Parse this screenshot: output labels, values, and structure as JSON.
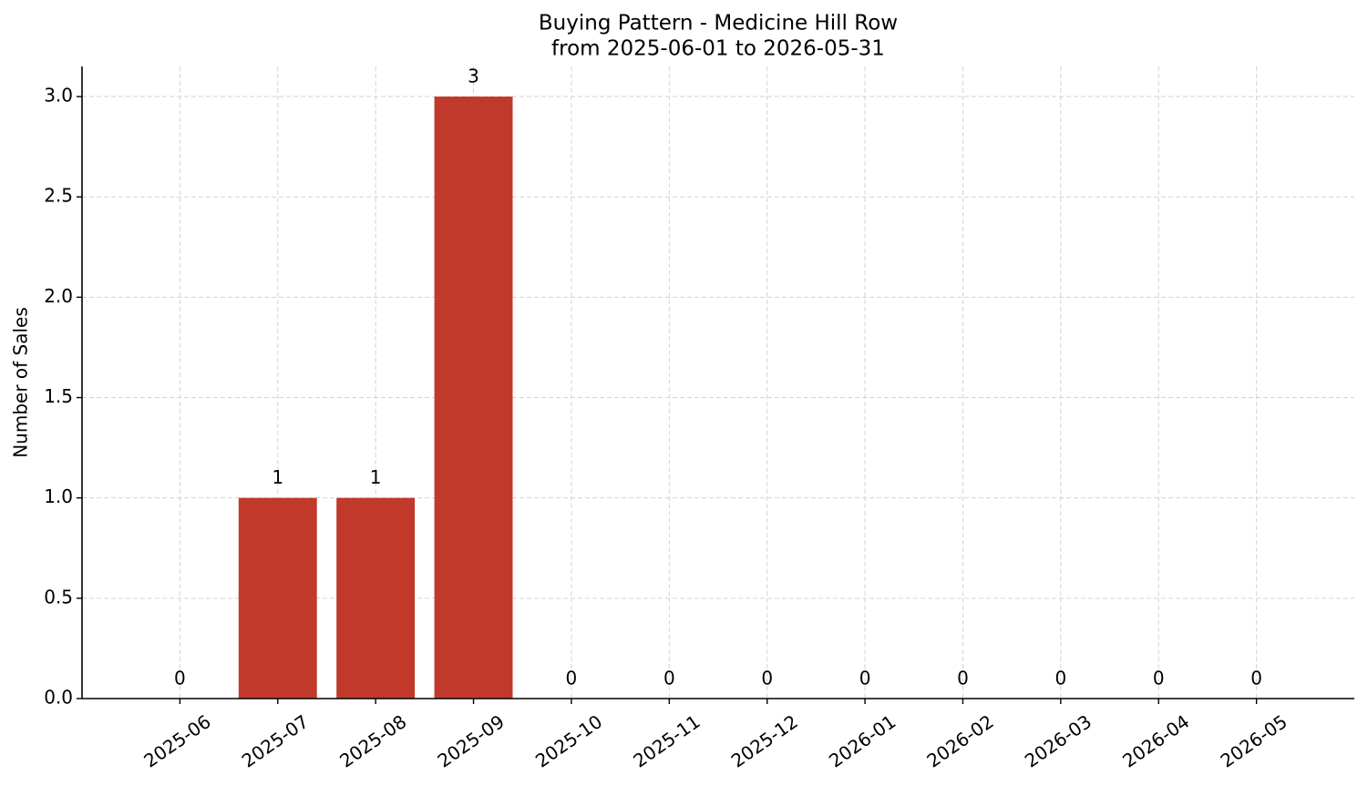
{
  "chart_data": {
    "type": "bar",
    "title": "Buying Pattern - Medicine Hill Row",
    "subtitle": "from 2025-06-01 to 2026-05-31",
    "y_label": "Number of Sales",
    "categories": [
      "2025-06",
      "2025-07",
      "2025-08",
      "2025-09",
      "2025-10",
      "2025-11",
      "2025-12",
      "2026-01",
      "2026-02",
      "2026-03",
      "2026-04",
      "2026-05"
    ],
    "values": [
      0,
      1,
      1,
      3,
      0,
      0,
      0,
      0,
      0,
      0,
      0,
      0
    ],
    "color": "#c0392b",
    "ylim": [
      0,
      3.15
    ],
    "yticks": [
      {
        "value": 0,
        "label": "0.0"
      },
      {
        "value": 0.5,
        "label": "0.5"
      },
      {
        "value": 1,
        "label": "1.0"
      },
      {
        "value": 1.5,
        "label": "1.5"
      },
      {
        "value": 2,
        "label": "2.0"
      },
      {
        "value": 2.5,
        "label": "2.5"
      },
      {
        "value": 3,
        "label": "3.0"
      }
    ],
    "grid": true
  }
}
